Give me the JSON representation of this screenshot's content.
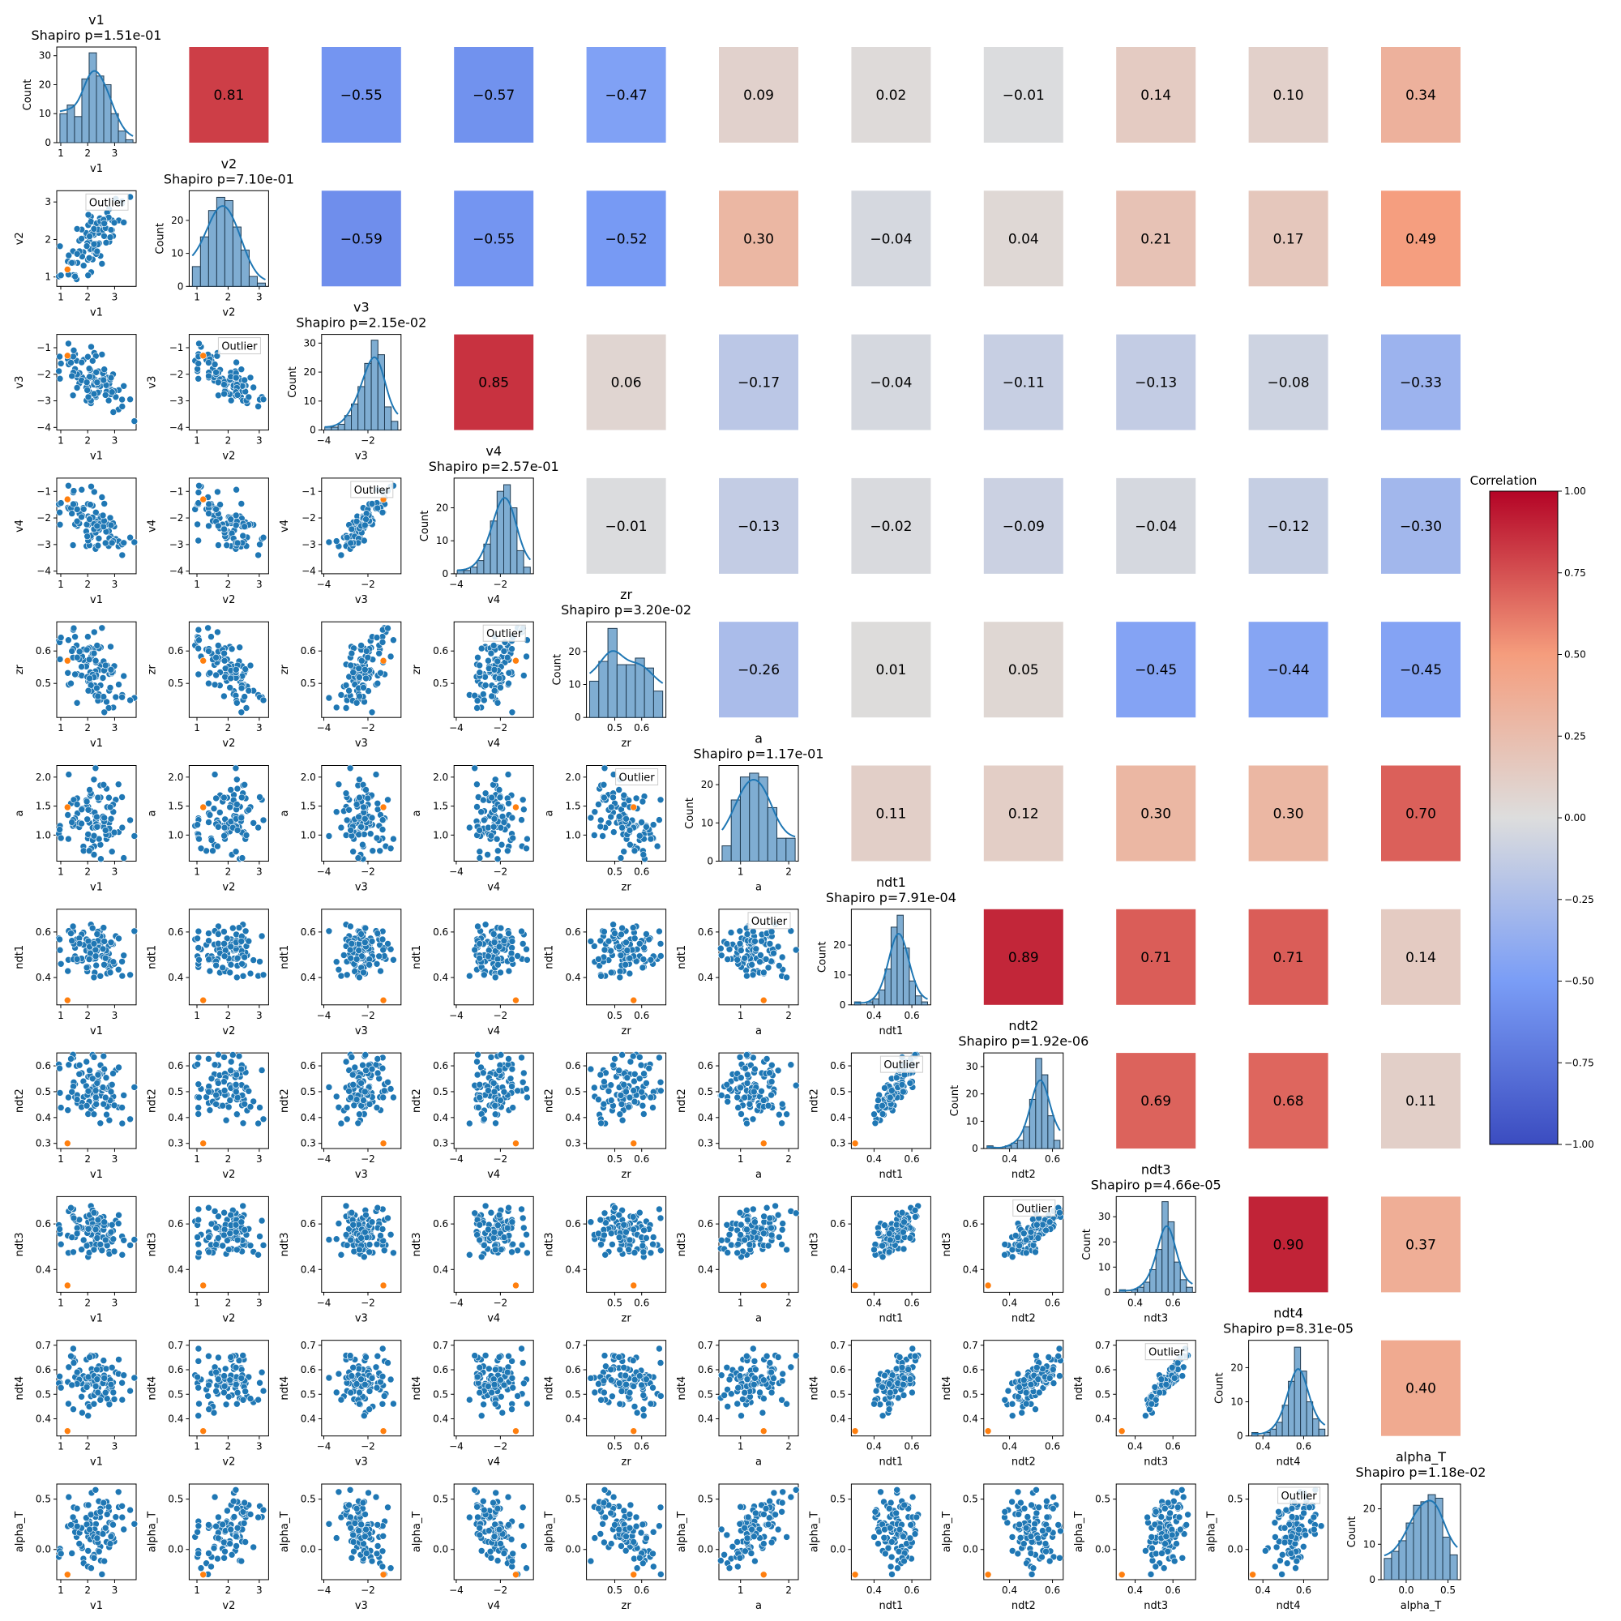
{
  "chart_data": {
    "type": "pairplot",
    "variables": [
      "v1",
      "v2",
      "v3",
      "v4",
      "zr",
      "a",
      "ndt1",
      "ndt2",
      "ndt3",
      "ndt4",
      "alpha_T"
    ],
    "shapiro_prefix": "Shapiro p=",
    "shapiro_p": [
      "1.51e-01",
      "7.10e-01",
      "2.15e-02",
      "2.57e-01",
      "3.20e-02",
      "1.17e-01",
      "7.91e-04",
      "1.92e-06",
      "4.66e-05",
      "8.31e-05",
      "1.18e-02"
    ],
    "correlations": [
      [
        null,
        0.81,
        -0.55,
        -0.57,
        -0.47,
        0.09,
        0.02,
        -0.01,
        0.14,
        0.1,
        0.34
      ],
      [
        null,
        null,
        -0.59,
        -0.55,
        -0.52,
        0.3,
        -0.04,
        0.04,
        0.21,
        0.17,
        0.49
      ],
      [
        null,
        null,
        null,
        0.85,
        0.06,
        -0.17,
        -0.04,
        -0.11,
        -0.13,
        -0.08,
        -0.33
      ],
      [
        null,
        null,
        null,
        null,
        -0.01,
        -0.13,
        -0.02,
        -0.09,
        -0.04,
        -0.12,
        -0.3
      ],
      [
        null,
        null,
        null,
        null,
        null,
        -0.26,
        0.01,
        0.05,
        -0.45,
        -0.44,
        -0.45
      ],
      [
        null,
        null,
        null,
        null,
        null,
        null,
        0.11,
        0.12,
        0.3,
        0.3,
        0.7
      ],
      [
        null,
        null,
        null,
        null,
        null,
        null,
        null,
        0.89,
        0.71,
        0.71,
        0.14
      ],
      [
        null,
        null,
        null,
        null,
        null,
        null,
        null,
        null,
        0.69,
        0.68,
        0.11
      ],
      [
        null,
        null,
        null,
        null,
        null,
        null,
        null,
        null,
        null,
        0.9,
        0.37
      ],
      [
        null,
        null,
        null,
        null,
        null,
        null,
        null,
        null,
        null,
        null,
        0.4
      ]
    ],
    "axis_ranges": {
      "v1": [
        0.85,
        3.8
      ],
      "v2": [
        0.75,
        3.3
      ],
      "v3": [
        -4.1,
        -0.5
      ],
      "v4": [
        -4.1,
        -0.5
      ],
      "zr": [
        0.395,
        0.69
      ],
      "a": [
        0.55,
        2.2
      ],
      "ndt1": [
        0.28,
        0.7
      ],
      "ndt2": [
        0.28,
        0.65
      ],
      "ndt3": [
        0.3,
        0.72
      ],
      "ndt4": [
        0.33,
        0.72
      ],
      "alpha_T": [
        -0.3,
        0.65
      ]
    },
    "ticks": {
      "v1": [
        1,
        2,
        3
      ],
      "v2": [
        1,
        2,
        3
      ],
      "v3": [
        -4,
        -2
      ],
      "v4": [
        -4,
        -2
      ],
      "zr": [
        0.5,
        0.6
      ],
      "a": [
        1,
        2
      ],
      "ndt1": [
        0.4,
        0.6
      ],
      "ndt2": [
        0.4,
        0.6
      ],
      "ndt3": [
        0.4,
        0.6
      ],
      "ndt4": [
        0.4,
        0.6
      ],
      "alpha_T": [
        0.0,
        0.5
      ]
    },
    "row_ticks": {
      "v1": [
        0,
        10,
        20,
        30
      ],
      "v2": [
        1,
        2,
        3
      ],
      "v3": [
        -4,
        -3,
        -2,
        -1
      ],
      "v4": [
        -4,
        -3,
        -2,
        -1
      ],
      "zr": [
        0.5,
        0.6
      ],
      "a": [
        1.0,
        1.5,
        2.0
      ],
      "ndt1": [
        0.4,
        0.6
      ],
      "ndt2": [
        0.3,
        0.4,
        0.5,
        0.6
      ],
      "ndt3": [
        0.4,
        0.6
      ],
      "ndt4": [
        0.4,
        0.5,
        0.6,
        0.7
      ],
      "alpha_T": [
        0.0,
        0.5
      ]
    },
    "tick_labels": {
      "v1": [
        "1",
        "2",
        "3"
      ],
      "v2": [
        "1",
        "2",
        "3"
      ],
      "v3": [
        "−4",
        "−2"
      ],
      "v4": [
        "−4",
        "−2"
      ],
      "zr": [
        "0.5",
        "0.6"
      ],
      "a": [
        "1",
        "2"
      ],
      "ndt1": [
        "0.4",
        "0.6"
      ],
      "ndt2": [
        "0.4",
        "0.6"
      ],
      "ndt3": [
        "0.4",
        "0.6"
      ],
      "ndt4": [
        "0.4",
        "0.6"
      ],
      "alpha_T": [
        "0.0",
        "0.5"
      ]
    },
    "row_tick_labels": {
      "v1": [
        "0",
        "10",
        "20",
        "30"
      ],
      "v2": [
        "1",
        "2",
        "3"
      ],
      "v3": [
        "−4",
        "−3",
        "−2",
        "−1"
      ],
      "v4": [
        "−4",
        "−3",
        "−2",
        "−1"
      ],
      "zr": [
        "0.5",
        "0.6"
      ],
      "a": [
        "1.0",
        "1.5",
        "2.0"
      ],
      "ndt1": [
        "0.4",
        "0.6"
      ],
      "ndt2": [
        "0.3",
        "0.4",
        "0.5",
        "0.6"
      ],
      "ndt3": [
        "0.4",
        "0.6"
      ],
      "ndt4": [
        "0.4",
        "0.5",
        "0.6",
        "0.7"
      ],
      "alpha_T": [
        "0.0",
        "0.5"
      ]
    },
    "histograms": {
      "v1": {
        "counts": [
          10,
          13,
          9,
          22,
          31,
          23,
          20,
          10,
          4,
          1
        ],
        "ylim": [
          0,
          33
        ],
        "yticks": [
          0,
          10,
          20,
          30
        ]
      },
      "v2": {
        "counts": [
          6,
          15,
          23,
          27,
          26,
          18,
          11,
          3,
          1
        ],
        "ylim": [
          0,
          29
        ],
        "yticks": [
          0,
          10,
          20
        ]
      },
      "v3": {
        "counts": [
          1,
          1,
          2,
          5,
          9,
          15,
          23,
          31,
          26,
          8,
          3
        ],
        "ylim": [
          0,
          33
        ],
        "yticks": [
          0,
          10,
          20,
          30
        ]
      },
      "v4": {
        "counts": [
          1,
          1,
          2,
          4,
          9,
          16,
          25,
          27,
          20,
          7,
          2
        ],
        "ylim": [
          0,
          29
        ],
        "yticks": [
          0,
          10,
          20
        ]
      },
      "zr": {
        "counts": [
          11,
          17,
          27,
          16,
          16,
          18,
          15,
          8
        ],
        "ylim": [
          0,
          29
        ],
        "yticks": [
          0,
          10,
          20
        ]
      },
      "a": {
        "counts": [
          4,
          16,
          22,
          23,
          22,
          14,
          6,
          6
        ],
        "ylim": [
          0,
          25
        ],
        "yticks": [
          0,
          10,
          20
        ]
      },
      "ndt1": {
        "counts": [
          1,
          0,
          1,
          2,
          5,
          12,
          26,
          30,
          19,
          8,
          3,
          1
        ],
        "ylim": [
          0,
          32
        ],
        "yticks": [
          0,
          10,
          20
        ]
      },
      "ndt2": {
        "counts": [
          1,
          0,
          0,
          1,
          2,
          3,
          8,
          18,
          33,
          27,
          12,
          3
        ],
        "ylim": [
          0,
          35
        ],
        "yticks": [
          0,
          10,
          20,
          30
        ]
      },
      "ndt3": {
        "counts": [
          1,
          0,
          1,
          2,
          4,
          9,
          17,
          36,
          28,
          12,
          5,
          2
        ],
        "ylim": [
          0,
          38
        ],
        "yticks": [
          0,
          10,
          20,
          30
        ]
      },
      "ndt4": {
        "counts": [
          1,
          0,
          1,
          2,
          4,
          9,
          16,
          26,
          19,
          10,
          5,
          2
        ],
        "ylim": [
          0,
          28
        ],
        "yticks": [
          0,
          10,
          20
        ]
      },
      "alpha_T": {
        "counts": [
          6,
          8,
          11,
          16,
          21,
          22,
          24,
          23,
          12,
          7
        ],
        "ylim": [
          0,
          27
        ],
        "yticks": [
          0,
          10,
          20
        ]
      }
    },
    "means": {
      "v1": 2.2,
      "v2": 2.0,
      "v3": -2.2,
      "v4": -2.2,
      "zr": 0.53,
      "a": 1.3,
      "ndt1": 0.52,
      "ndt2": 0.52,
      "ndt3": 0.57,
      "ndt4": 0.56,
      "alpha_T": 0.2
    },
    "sds": {
      "v1": 0.6,
      "v2": 0.55,
      "v3": 0.55,
      "v4": 0.55,
      "zr": 0.07,
      "a": 0.35,
      "ndt1": 0.05,
      "ndt2": 0.05,
      "ndt3": 0.05,
      "ndt4": 0.05,
      "alpha_T": 0.22
    },
    "outlier": {
      "v1": 1.25,
      "v2": 1.2,
      "v3": -1.3,
      "v4": -1.3,
      "zr": 0.57,
      "a": 1.48,
      "ndt1": 0.3,
      "ndt2": 0.3,
      "ndt3": 0.33,
      "ndt4": 0.35,
      "alpha_T": -0.25
    },
    "outlier_label": "Outlier",
    "count_label": "Count",
    "colorbar": {
      "title": "Correlation",
      "range": [
        -1,
        1
      ],
      "ticks": [
        1.0,
        0.75,
        0.5,
        0.25,
        0.0,
        -0.25,
        -0.5,
        -0.75,
        -1.0
      ],
      "tick_labels": [
        "1.00",
        "0.75",
        "0.50",
        "0.25",
        "0.00",
        "−0.25",
        "−0.50",
        "−0.75",
        "−1.00"
      ]
    },
    "colors": {
      "points": "#1f77b4",
      "outlier": "#ff7f0e",
      "hist_fill": "#7fadd2",
      "kde": "#1f77b4"
    }
  }
}
